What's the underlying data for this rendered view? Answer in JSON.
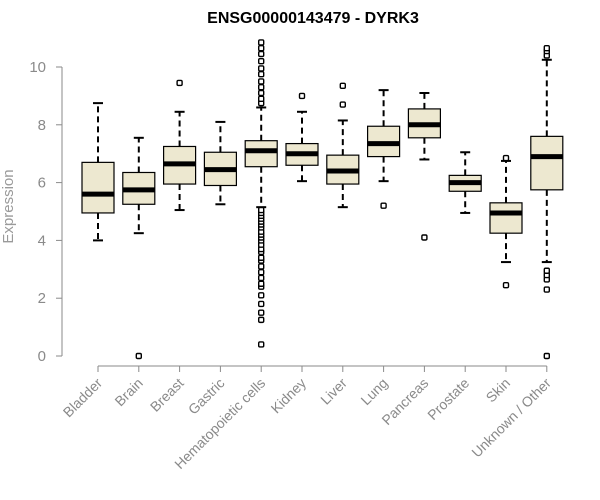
{
  "chart_data": {
    "type": "box",
    "title": "ENSG00000143479 - DYRK3",
    "xlabel": "",
    "ylabel": "Expression",
    "ylim": [
      0,
      10
    ],
    "yticks": [
      0,
      2,
      4,
      6,
      8,
      10
    ],
    "box_fill": "#ede8d0",
    "categories": [
      "Bladder",
      "Brain",
      "Breast",
      "Gastric",
      "Hematopoietic cells",
      "Kidney",
      "Liver",
      "Lung",
      "Pancreas",
      "Prostate",
      "Skin",
      "Unknown / Other"
    ],
    "boxes": [
      {
        "category": "Bladder",
        "whisker_low": 4.0,
        "q1": 4.95,
        "median": 5.6,
        "q3": 6.7,
        "whisker_high": 8.75,
        "outliers": []
      },
      {
        "category": "Brain",
        "whisker_low": 4.25,
        "q1": 5.25,
        "median": 5.75,
        "q3": 6.35,
        "whisker_high": 7.55,
        "outliers": [
          0.0
        ]
      },
      {
        "category": "Breast",
        "whisker_low": 5.05,
        "q1": 5.95,
        "median": 6.65,
        "q3": 7.25,
        "whisker_high": 8.45,
        "outliers": [
          9.45
        ]
      },
      {
        "category": "Gastric",
        "whisker_low": 5.25,
        "q1": 5.9,
        "median": 6.45,
        "q3": 7.05,
        "whisker_high": 8.1,
        "outliers": []
      },
      {
        "category": "Hematopoietic cells",
        "whisker_low": 5.15,
        "q1": 6.55,
        "median": 7.1,
        "q3": 7.45,
        "whisker_high": 8.6,
        "outliers": [
          0.4,
          1.25,
          1.5,
          1.8,
          2.1,
          2.4,
          2.5,
          2.7,
          2.9,
          3.1,
          3.3,
          3.4,
          3.6,
          3.7,
          3.85,
          4.0,
          4.1,
          4.2,
          4.3,
          4.45,
          4.55,
          4.65,
          4.75,
          4.85,
          4.95,
          5.05,
          8.75,
          8.9,
          9.1,
          9.3,
          9.5,
          9.75,
          9.95,
          10.2,
          10.45,
          10.65,
          10.85
        ]
      },
      {
        "category": "Kidney",
        "whisker_low": 6.05,
        "q1": 6.6,
        "median": 7.0,
        "q3": 7.35,
        "whisker_high": 8.45,
        "outliers": [
          9.0
        ]
      },
      {
        "category": "Liver",
        "whisker_low": 5.15,
        "q1": 5.95,
        "median": 6.4,
        "q3": 6.95,
        "whisker_high": 8.15,
        "outliers": [
          8.7,
          9.35
        ]
      },
      {
        "category": "Lung",
        "whisker_low": 6.05,
        "q1": 6.9,
        "median": 7.35,
        "q3": 7.95,
        "whisker_high": 9.2,
        "outliers": [
          5.2
        ]
      },
      {
        "category": "Pancreas",
        "whisker_low": 6.8,
        "q1": 7.55,
        "median": 8.0,
        "q3": 8.55,
        "whisker_high": 9.1,
        "outliers": [
          4.1
        ]
      },
      {
        "category": "Prostate",
        "whisker_low": 4.95,
        "q1": 5.7,
        "median": 6.0,
        "q3": 6.25,
        "whisker_high": 7.05,
        "outliers": []
      },
      {
        "category": "Skin",
        "whisker_low": 3.25,
        "q1": 4.25,
        "median": 4.95,
        "q3": 5.3,
        "whisker_high": 6.75,
        "outliers": [
          2.45,
          6.85
        ]
      },
      {
        "category": "Unknown / Other",
        "whisker_low": 3.25,
        "q1": 5.75,
        "median": 6.9,
        "q3": 7.6,
        "whisker_high": 10.25,
        "outliers": [
          0.0,
          2.3,
          2.65,
          2.8,
          2.95,
          10.4,
          10.55,
          10.65
        ]
      }
    ]
  }
}
